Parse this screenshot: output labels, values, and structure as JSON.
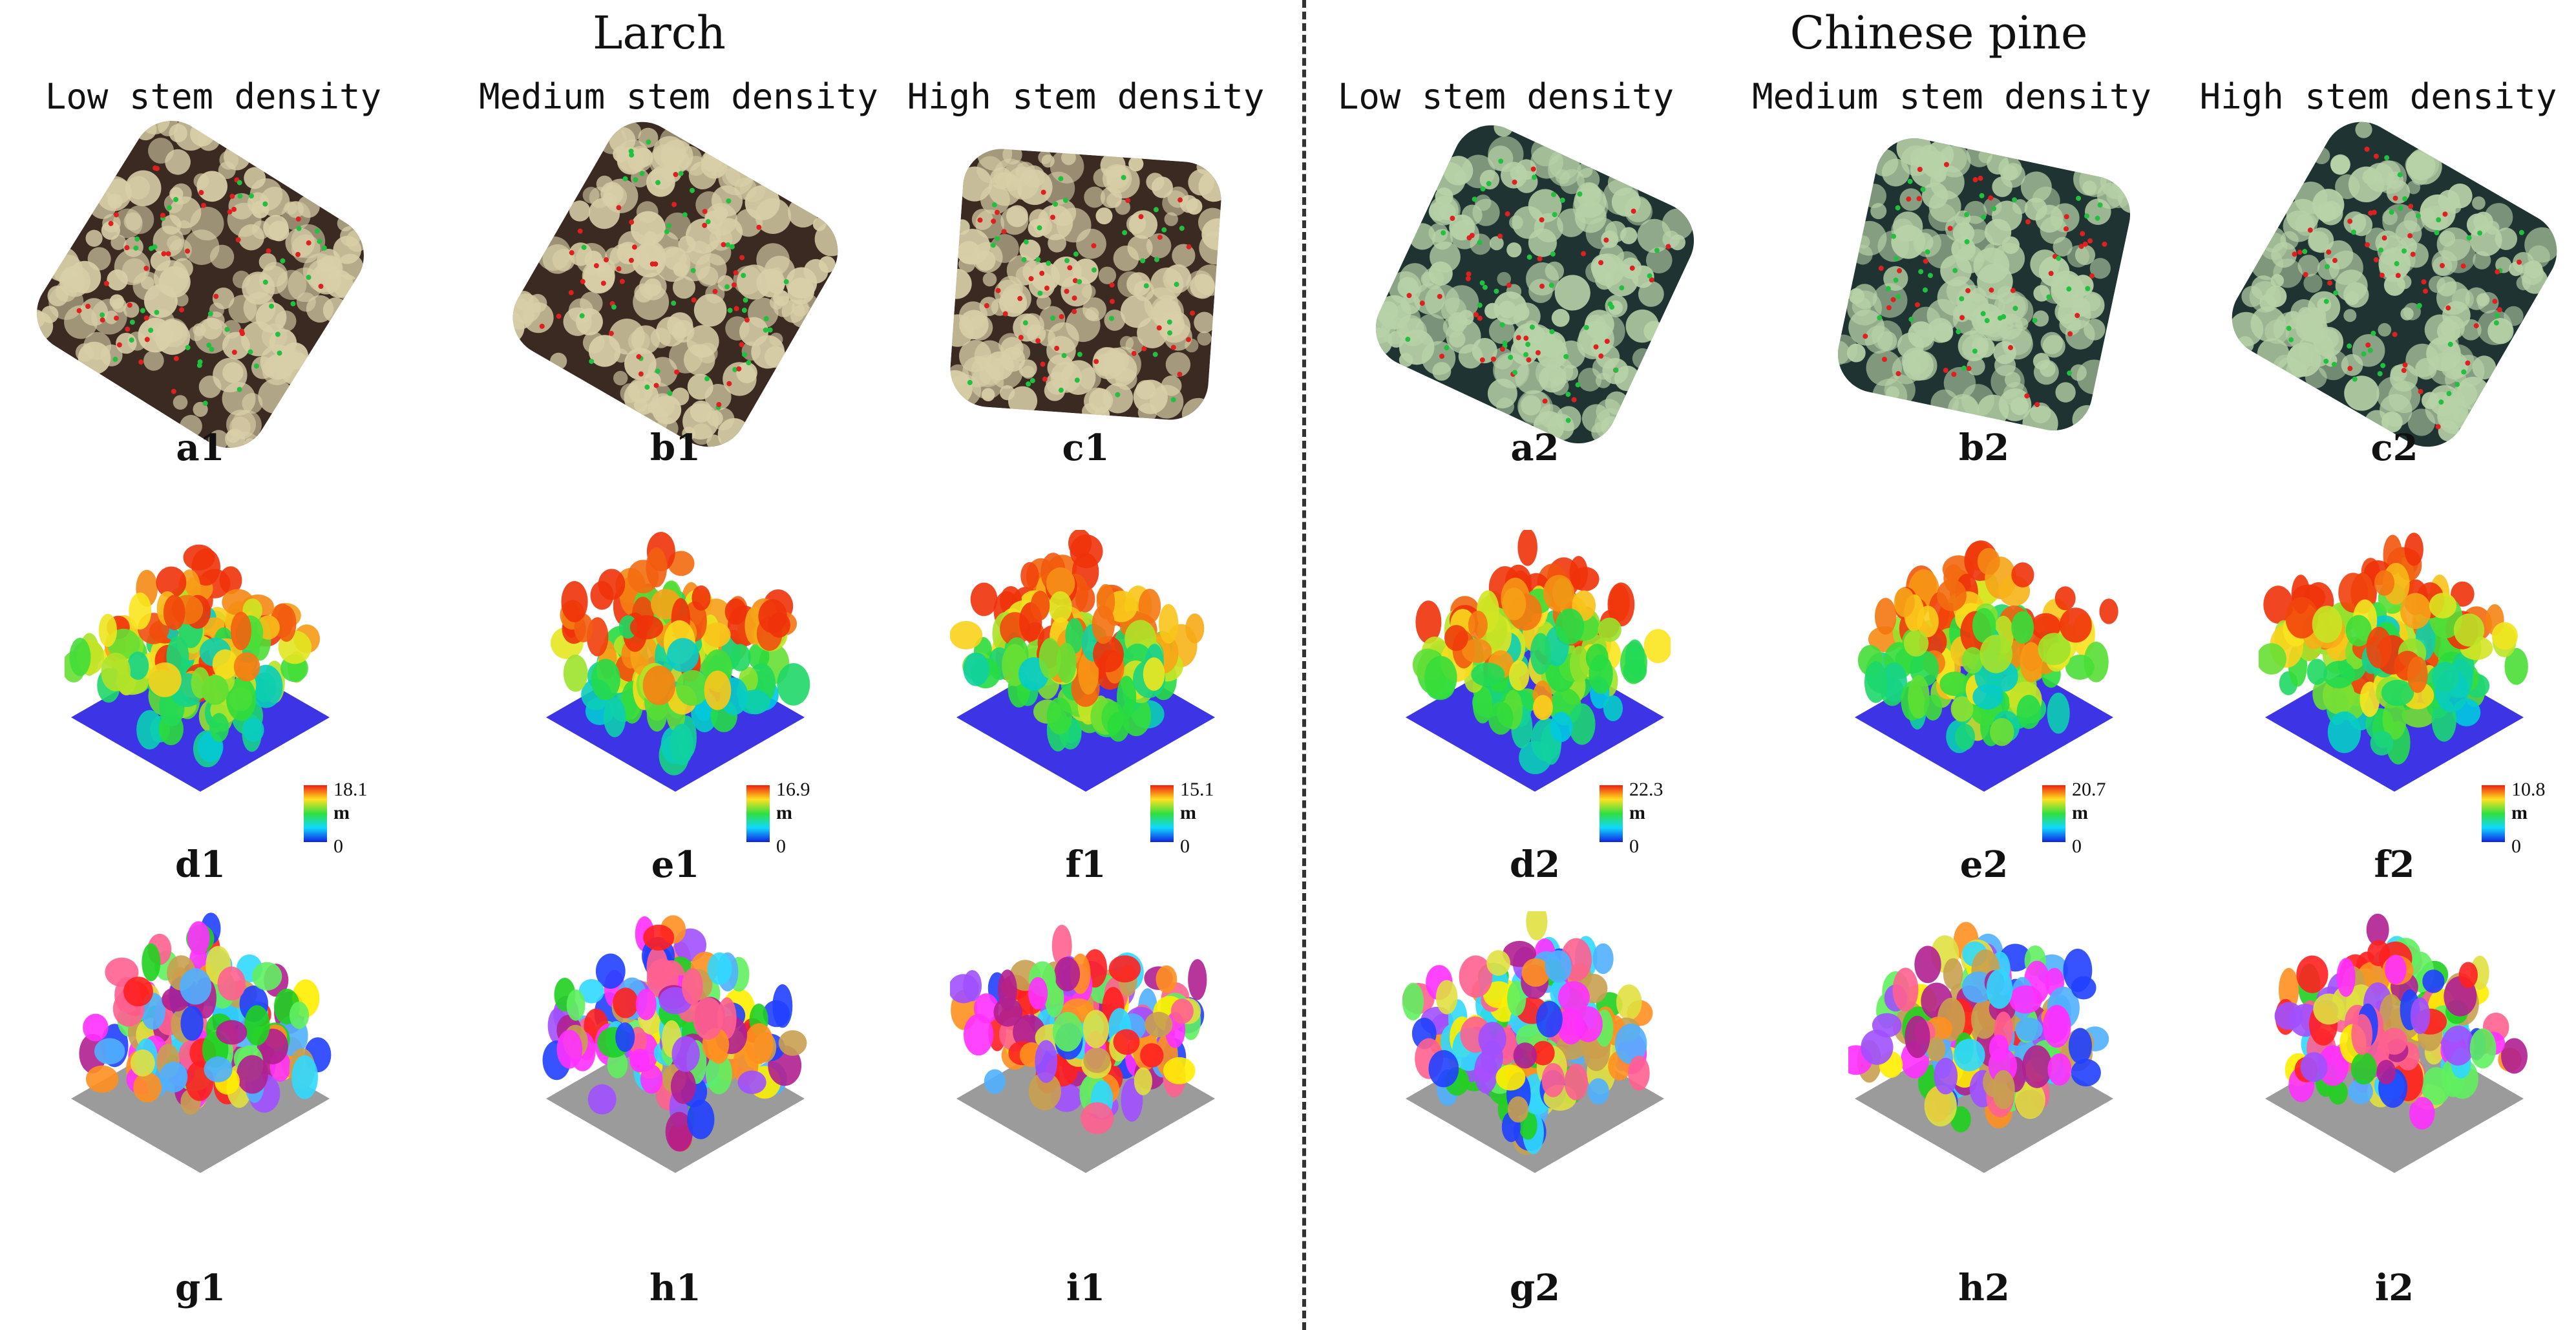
{
  "groups": [
    {
      "name": "Larch"
    },
    {
      "name": "Chinese pine"
    }
  ],
  "column_titles": [
    "Low stem density",
    "Medium stem density",
    "High stem density",
    "Low stem density",
    "Medium stem density",
    "High stem density"
  ],
  "row_labels": {
    "row1": [
      "a1",
      "b1",
      "c1",
      "a2",
      "b2",
      "c2"
    ],
    "row2": [
      "d1",
      "e1",
      "f1",
      "d2",
      "e2",
      "f2"
    ],
    "row3": [
      "g1",
      "h1",
      "i1",
      "g2",
      "h2",
      "i2"
    ]
  },
  "colorbars": [
    {
      "max": "18.1",
      "unit": "m",
      "min": "0"
    },
    {
      "max": "16.9",
      "unit": "m",
      "min": "0"
    },
    {
      "max": "15.1",
      "unit": "m",
      "min": "0"
    },
    {
      "max": "22.3",
      "unit": "m",
      "min": "0"
    },
    {
      "max": "20.7",
      "unit": "m",
      "min": "0"
    },
    {
      "max": "10.8",
      "unit": "m",
      "min": "0"
    }
  ],
  "colors": {
    "larch_canopy": "#d8cfa8",
    "larch_shadow": "#3a2a22",
    "pine_canopy": "#b8d2a8",
    "pine_shadow": "#1f3432",
    "ground": "#1a10e0",
    "segment_ground": "#8a8a8a"
  }
}
